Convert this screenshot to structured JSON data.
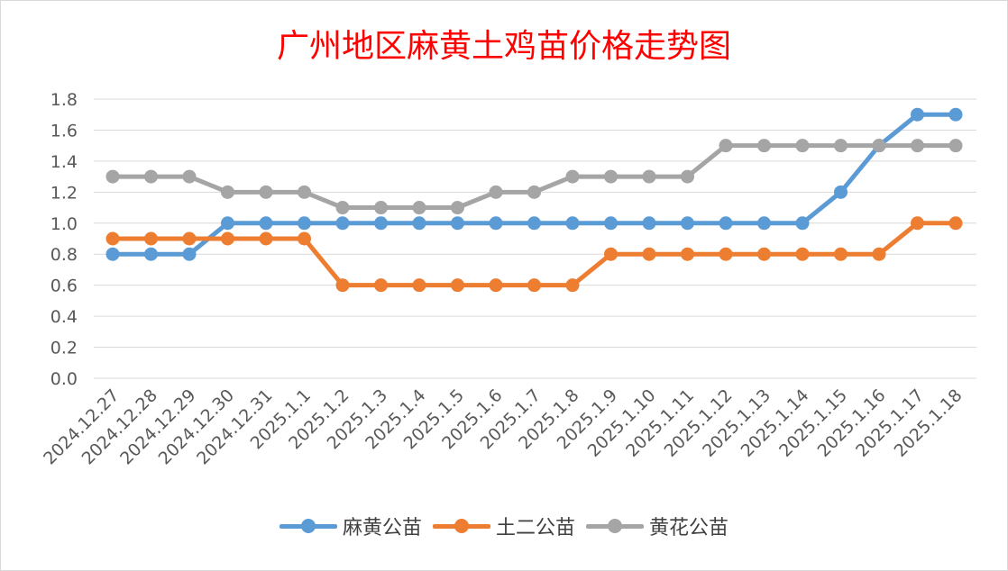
{
  "chart_data": {
    "type": "line",
    "title": "广州地区麻黄土鸡苗价格走势图",
    "categories": [
      "2024.12.27",
      "2024.12.28",
      "2024.12.29",
      "2024.12.30",
      "2024.12.31",
      "2025.1.1",
      "2025.1.2",
      "2025.1.3",
      "2025.1.4",
      "2025.1.5",
      "2025.1.6",
      "2025.1.7",
      "2025.1.8",
      "2025.1.9",
      "2025.1.10",
      "2025.1.11",
      "2025.1.12",
      "2025.1.13",
      "2025.1.14",
      "2025.1.15",
      "2025.1.16",
      "2025.1.17",
      "2025.1.18"
    ],
    "series": [
      {
        "name": "麻黄公苗",
        "color": "#5b9bd5",
        "values": [
          0.8,
          0.8,
          0.8,
          1.0,
          1.0,
          1.0,
          1.0,
          1.0,
          1.0,
          1.0,
          1.0,
          1.0,
          1.0,
          1.0,
          1.0,
          1.0,
          1.0,
          1.0,
          1.0,
          1.2,
          1.5,
          1.7,
          1.7
        ]
      },
      {
        "name": "土二公苗",
        "color": "#ed7d31",
        "values": [
          0.9,
          0.9,
          0.9,
          0.9,
          0.9,
          0.9,
          0.6,
          0.6,
          0.6,
          0.6,
          0.6,
          0.6,
          0.6,
          0.8,
          0.8,
          0.8,
          0.8,
          0.8,
          0.8,
          0.8,
          0.8,
          1.0,
          1.0
        ]
      },
      {
        "name": "黄花公苗",
        "color": "#a5a5a5",
        "values": [
          1.3,
          1.3,
          1.3,
          1.2,
          1.2,
          1.2,
          1.1,
          1.1,
          1.1,
          1.1,
          1.2,
          1.2,
          1.3,
          1.3,
          1.3,
          1.3,
          1.5,
          1.5,
          1.5,
          1.5,
          1.5,
          1.5,
          1.5
        ]
      }
    ],
    "yticks": [
      "0.0",
      "0.2",
      "0.4",
      "0.6",
      "0.8",
      "1.0",
      "1.2",
      "1.4",
      "1.6",
      "1.8"
    ],
    "ylim": [
      0,
      1.8
    ],
    "grid": true,
    "legend_position": "bottom",
    "title_color": "#ff0000"
  }
}
